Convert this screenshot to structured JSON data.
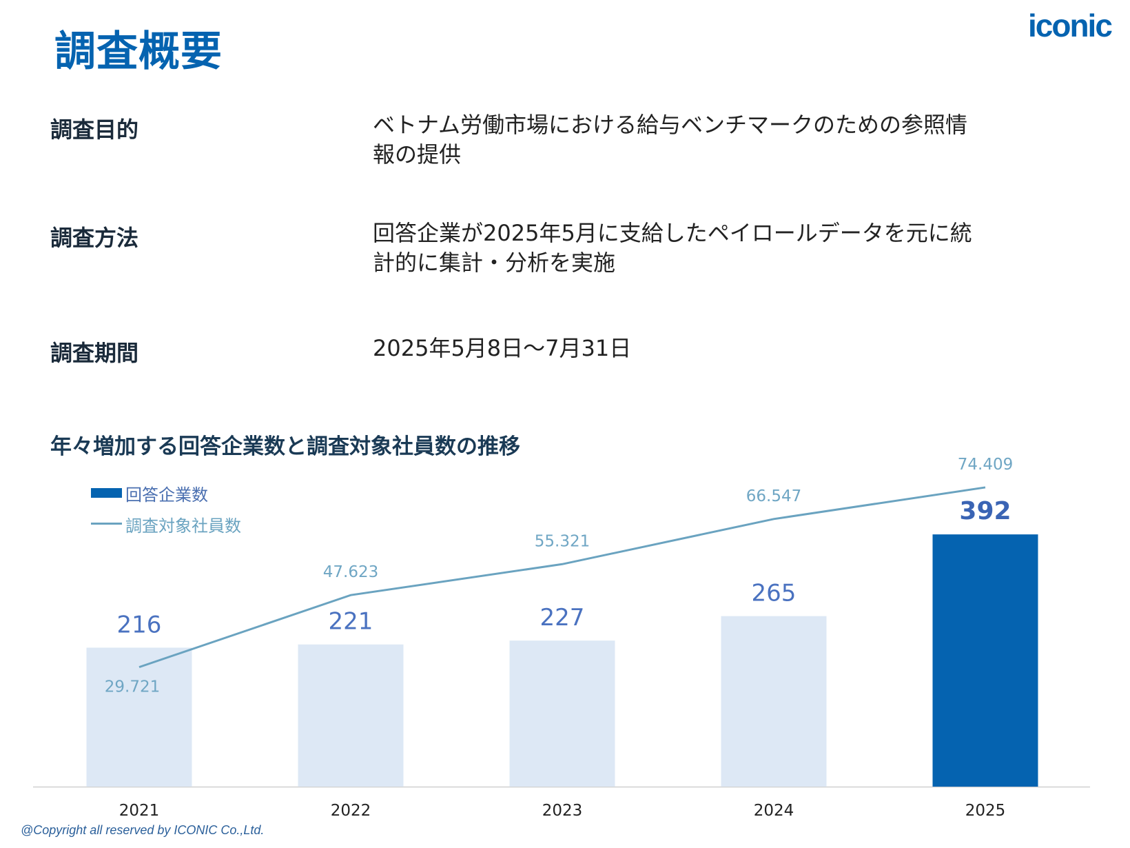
{
  "header": {
    "title": "調査概要",
    "logo": "iconic"
  },
  "overview": [
    {
      "label": "調査目的",
      "value_lines": [
        "ベトナム労働市場における給与ベンチマークのための参照情",
        "報の提供"
      ]
    },
    {
      "label": "調査方法",
      "value_lines": [
        "回答企業が2025年5月に支給したペイロールデータを元に統",
        "計的に集計・分析を実施"
      ]
    },
    {
      "label": "調査期間",
      "value_lines": [
        "2025年5月8日～7月31日"
      ]
    }
  ],
  "chart_data": {
    "type": "bar+line",
    "title": "年々増加する回答企業数と調査対象社員数の推移",
    "categories": [
      "2021",
      "2022",
      "2023",
      "2024",
      "2025"
    ],
    "legend_placement": "top-left",
    "grid": false,
    "series": [
      {
        "name": "回答企業数",
        "type": "bar",
        "values": [
          216,
          221,
          227,
          265,
          392
        ],
        "labels": [
          "216",
          "221",
          "227",
          "265",
          "392"
        ],
        "colors": [
          "#dde8f5",
          "#dde8f5",
          "#dde8f5",
          "#dde8f5",
          "#0563b0"
        ]
      },
      {
        "name": "調査対象社員数",
        "type": "line",
        "values": [
          29721,
          47623,
          55321,
          66547,
          74409
        ],
        "labels": [
          "29.721",
          "47.623",
          "55.321",
          "66.547",
          "74.409"
        ],
        "color": "#6aa3c0"
      }
    ]
  },
  "footer": {
    "copyright": "@Copyright all reserved by ICONIC Co.,Ltd."
  },
  "colors": {
    "brand": "#0563b0",
    "bar_light": "#dde8f5",
    "bar_label": "#4472c4",
    "line": "#6aa3c0"
  }
}
